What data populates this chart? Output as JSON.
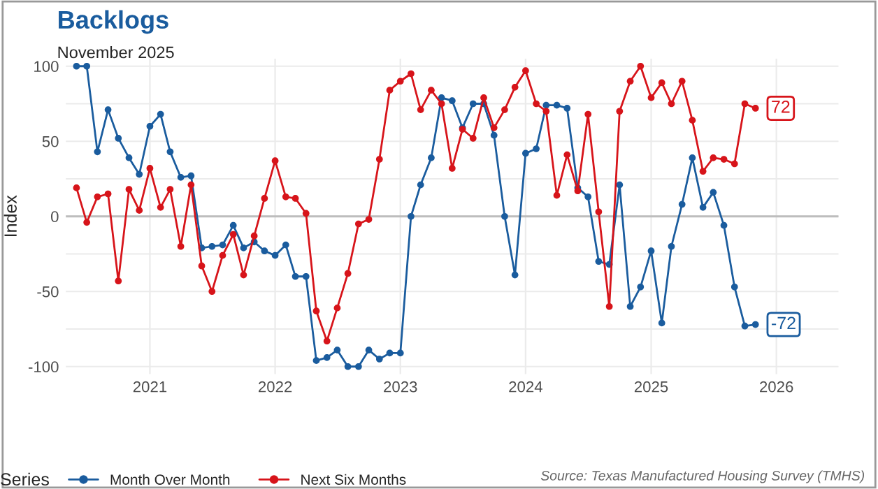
{
  "chart_data": {
    "type": "line",
    "title": "Backlogs",
    "subtitle": "November 2025",
    "ylabel": "Index",
    "legend_title": "Series",
    "x": [
      "2020-06",
      "2020-07",
      "2020-08",
      "2020-09",
      "2020-10",
      "2020-11",
      "2020-12",
      "2021-01",
      "2021-02",
      "2021-03",
      "2021-04",
      "2021-05",
      "2021-06",
      "2021-07",
      "2021-08",
      "2021-09",
      "2021-10",
      "2021-11",
      "2021-12",
      "2022-01",
      "2022-02",
      "2022-03",
      "2022-04",
      "2022-05",
      "2022-06",
      "2022-07",
      "2022-08",
      "2022-09",
      "2022-10",
      "2022-11",
      "2022-12",
      "2023-01",
      "2023-02",
      "2023-03",
      "2023-04",
      "2023-05",
      "2023-06",
      "2023-07",
      "2023-08",
      "2023-09",
      "2023-10",
      "2023-11",
      "2023-12",
      "2024-01",
      "2024-02",
      "2024-03",
      "2024-04",
      "2024-05",
      "2024-06",
      "2024-07",
      "2024-08",
      "2024-09",
      "2024-10",
      "2024-11",
      "2024-12",
      "2025-01",
      "2025-02",
      "2025-03",
      "2025-04",
      "2025-05",
      "2025-06",
      "2025-07",
      "2025-08",
      "2025-09",
      "2025-10",
      "2025-11"
    ],
    "series": [
      {
        "name": "Month Over Month",
        "color": "#1a5c9e",
        "values": [
          100,
          100,
          43,
          71,
          52,
          39,
          28,
          60,
          68,
          43,
          26,
          27,
          -21,
          -20,
          -19,
          -6,
          -21,
          -17,
          -23,
          -26,
          -19,
          -40,
          -40,
          -96,
          -94,
          -89,
          -100,
          -100,
          -89,
          -95,
          -91,
          -91,
          0,
          21,
          39,
          79,
          77,
          59,
          75,
          75,
          54,
          0,
          -39,
          42,
          45,
          74,
          74,
          72,
          19,
          13,
          -30,
          -32,
          21,
          -60,
          -47,
          -23,
          -71,
          -20,
          8,
          39,
          6,
          16,
          -6,
          -47,
          -73,
          -72
        ]
      },
      {
        "name": "Next Six Months",
        "color": "#d7141a",
        "values": [
          19,
          -4,
          13,
          15,
          -43,
          18,
          4,
          32,
          6,
          18,
          -20,
          21,
          -33,
          -50,
          -26,
          -12,
          -39,
          -13,
          12,
          37,
          13,
          12,
          2,
          -63,
          -83,
          -61,
          -38,
          -5,
          -2,
          38,
          84,
          90,
          95,
          71,
          84,
          75,
          32,
          58,
          52,
          79,
          59,
          71,
          86,
          97,
          75,
          70,
          14,
          41,
          17,
          68,
          3,
          -60,
          70,
          90,
          100,
          79,
          89,
          75,
          90,
          64,
          30,
          39,
          38,
          35,
          75,
          72
        ]
      }
    ],
    "annotations": [
      {
        "text": "72",
        "x": "2025-11",
        "y": 72
      },
      {
        "text": "-72",
        "x": "2025-11",
        "y": -72
      },
      "Source: Texas Manufactured Housing Survey (TMHS)"
    ],
    "xlim": [
      "2020-05-01",
      "2026-07-01"
    ],
    "xticks": [
      {
        "value": "2021-01",
        "label": "2021"
      },
      {
        "value": "2022-01",
        "label": "2022"
      },
      {
        "value": "2023-01",
        "label": "2023"
      },
      {
        "value": "2024-01",
        "label": "2024"
      },
      {
        "value": "2025-01",
        "label": "2025"
      },
      {
        "value": "2026-01",
        "label": "2026"
      }
    ],
    "ylim": [
      -105,
      105
    ],
    "yticks": [
      -100,
      {
        "value": -75,
        "label": null
      },
      -50,
      {
        "value": -25,
        "label": null
      },
      0,
      {
        "value": 25,
        "label": null
      },
      50,
      {
        "value": 75,
        "label": null
      },
      100
    ],
    "ref_lines": [
      {
        "axis": "y",
        "value": 0,
        "color": "#bdbdbd"
      }
    ],
    "grid": true,
    "legend": "bottom",
    "marker": "circle",
    "line_style": "solid"
  }
}
